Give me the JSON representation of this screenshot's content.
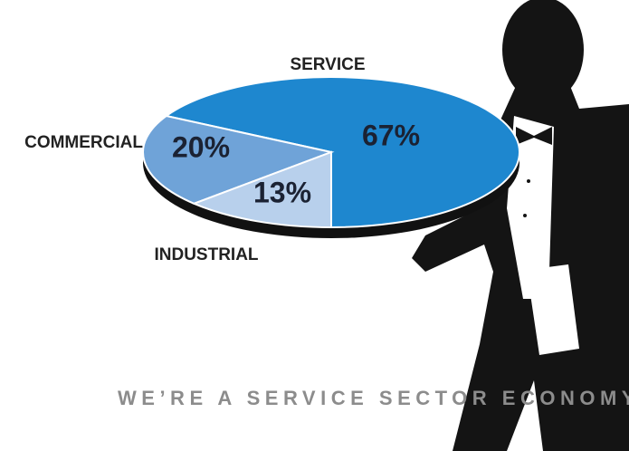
{
  "chart_data": {
    "type": "pie",
    "title": "WE’RE A SERVICE SECTOR ECONOMY",
    "categories": [
      "SERVICE",
      "COMMERCIAL",
      "INDUSTRIAL"
    ],
    "values": [
      67,
      20,
      13
    ],
    "value_labels": [
      "67%",
      "20%",
      "13%"
    ],
    "colors": [
      "#1e87cf",
      "#6fa3d8",
      "#b8d0ec"
    ]
  }
}
